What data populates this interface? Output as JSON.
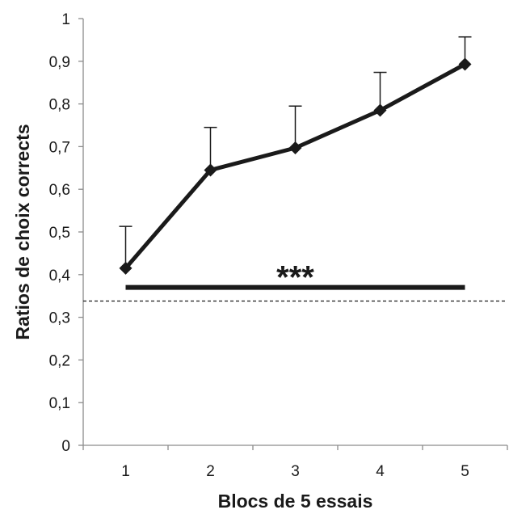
{
  "chart_data": {
    "type": "line",
    "x": [
      1,
      2,
      3,
      4,
      5
    ],
    "categories": [
      "1",
      "2",
      "3",
      "4",
      "5"
    ],
    "series": [
      {
        "values": [
          0.415,
          0.645,
          0.697,
          0.785,
          0.893
        ],
        "error_upper": [
          0.098,
          0.1,
          0.098,
          0.089,
          0.064
        ],
        "color": "#1a1a1a",
        "marker": "diamond"
      }
    ],
    "xlabel": "Blocs de 5 essais",
    "ylabel": "Ratios de choix corrects",
    "ylim": [
      0,
      1
    ],
    "yticks": [
      0,
      0.1,
      0.2,
      0.3,
      0.4,
      0.5,
      0.6,
      0.7,
      0.8,
      0.9,
      1
    ],
    "ytick_labels": [
      "0",
      "0,1",
      "0,2",
      "0,3",
      "0,4",
      "0,5",
      "0,6",
      "0,7",
      "0,8",
      "0,9",
      "1"
    ],
    "grid": false,
    "legend": "none",
    "reference_line": {
      "value": 0.338,
      "style": "dashed"
    },
    "significance": {
      "label": "***",
      "value": 0.37,
      "x_from": 1,
      "x_to": 5
    }
  }
}
